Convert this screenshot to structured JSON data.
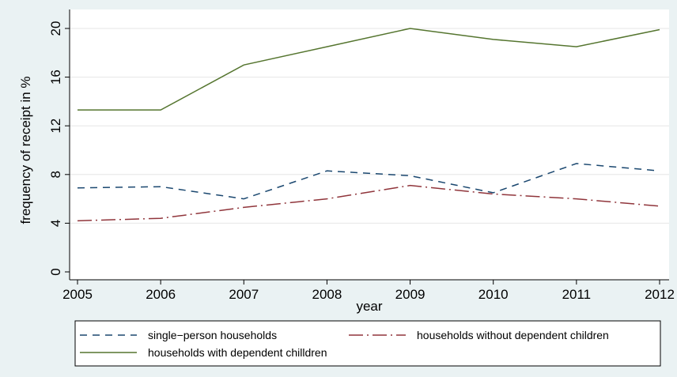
{
  "chart_data": {
    "type": "line",
    "title": "",
    "xlabel": "year",
    "ylabel": "frequency of receipt in %",
    "x": [
      2005,
      2006,
      2007,
      2008,
      2009,
      2010,
      2011,
      2012
    ],
    "xlim": [
      2005,
      2012
    ],
    "ylim": [
      0,
      20
    ],
    "yticks": [
      0,
      4,
      8,
      12,
      16,
      20
    ],
    "grid": true,
    "legend_position": "bottom",
    "series": [
      {
        "name": "single−person households",
        "values": [
          6.9,
          7.0,
          6.0,
          8.3,
          7.9,
          6.5,
          8.9,
          8.3
        ],
        "color": "#1a476f",
        "dash": "dashed"
      },
      {
        "name": "households without dependent children",
        "values": [
          4.2,
          4.4,
          5.3,
          6.0,
          7.1,
          6.4,
          6.0,
          5.4
        ],
        "color": "#90353b",
        "dash": "dash-dot"
      },
      {
        "name": "households with dependent chilldren",
        "values": [
          13.3,
          13.3,
          17.0,
          18.5,
          20.0,
          19.1,
          18.5,
          19.9
        ],
        "color": "#55752f",
        "dash": "solid"
      }
    ]
  }
}
